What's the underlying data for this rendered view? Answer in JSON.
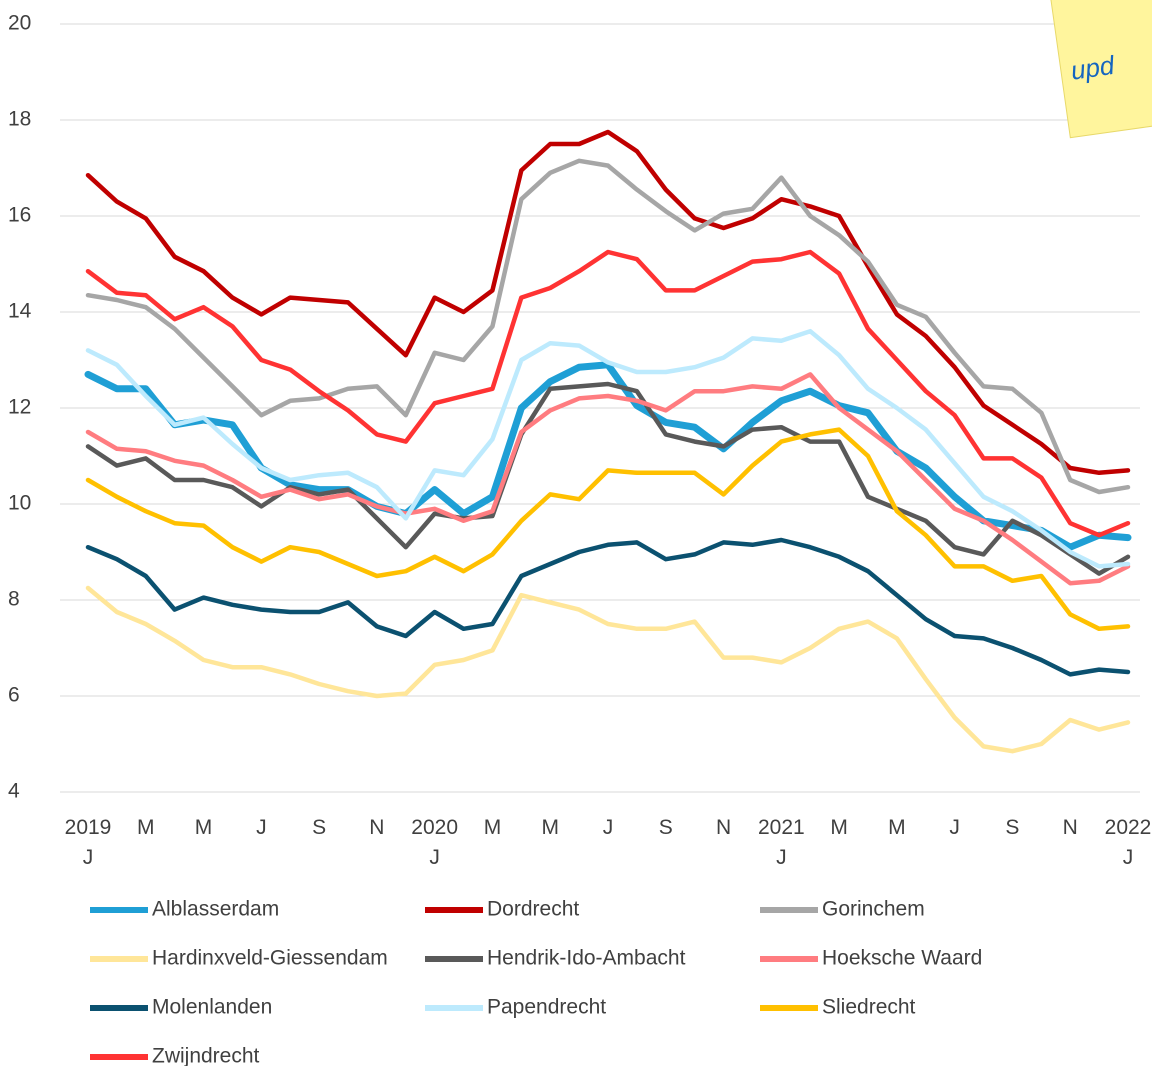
{
  "chart_data": {
    "type": "line",
    "note": "upd",
    "categories": [
      "2019\nJ",
      null,
      "M",
      null,
      "M",
      null,
      "J",
      null,
      "S",
      null,
      "N",
      null,
      "2020\nJ",
      null,
      "M",
      null,
      "M",
      null,
      "J",
      null,
      "S",
      null,
      "N",
      null,
      "2021\nJ",
      null,
      "M",
      null,
      "M",
      null,
      "J",
      null,
      "S",
      null,
      "N",
      null,
      "2022\nJ"
    ],
    "ylim": [
      4,
      20
    ],
    "yticks": [
      4,
      6,
      8,
      10,
      12,
      14,
      16,
      18,
      20
    ],
    "grid": true,
    "legend": "bottom",
    "series": [
      {
        "name": "Alblasserdam",
        "color": "#1f9fd5",
        "values": [
          12.7,
          12.4,
          12.4,
          11.65,
          11.75,
          11.65,
          10.75,
          10.4,
          10.3,
          10.3,
          9.95,
          9.8,
          10.3,
          9.8,
          10.15,
          12.0,
          12.55,
          12.85,
          12.9,
          12.05,
          11.7,
          11.6,
          11.15,
          11.7,
          12.15,
          12.35,
          12.05,
          11.9,
          11.1,
          10.75,
          10.15,
          9.65,
          9.55,
          9.45,
          9.1,
          9.35,
          9.3
        ]
      },
      {
        "name": "Dordrecht",
        "color": "#c00000",
        "values": [
          16.85,
          16.3,
          15.95,
          15.15,
          14.85,
          14.3,
          13.95,
          14.3,
          14.25,
          14.2,
          13.65,
          13.1,
          14.3,
          14.0,
          14.45,
          16.95,
          17.5,
          17.5,
          17.75,
          17.35,
          16.55,
          15.95,
          15.75,
          15.95,
          16.35,
          16.2,
          16.0,
          14.95,
          13.95,
          13.5,
          12.85,
          12.05,
          11.65,
          11.25,
          10.75,
          10.65,
          10.7
        ]
      },
      {
        "name": "Gorinchem",
        "color": "#a6a6a6",
        "values": [
          14.35,
          14.25,
          14.1,
          13.65,
          13.05,
          12.45,
          11.85,
          12.15,
          12.2,
          12.4,
          12.45,
          11.85,
          13.15,
          13.0,
          13.7,
          16.35,
          16.9,
          17.15,
          17.05,
          16.55,
          16.1,
          15.7,
          16.05,
          16.15,
          16.8,
          16.0,
          15.6,
          15.05,
          14.15,
          13.9,
          13.15,
          12.45,
          12.4,
          11.9,
          10.5,
          10.25,
          10.35
        ]
      },
      {
        "name": "Hardinxveld-Giessendam",
        "color": "#ffe699",
        "values": [
          8.25,
          7.75,
          7.5,
          7.15,
          6.75,
          6.6,
          6.6,
          6.45,
          6.25,
          6.1,
          6.0,
          6.05,
          6.65,
          6.75,
          6.95,
          8.1,
          7.95,
          7.8,
          7.5,
          7.4,
          7.4,
          7.55,
          6.8,
          6.8,
          6.7,
          7.0,
          7.4,
          7.55,
          7.2,
          6.35,
          5.55,
          4.95,
          4.85,
          5.0,
          5.5,
          5.3,
          5.45
        ]
      },
      {
        "name": "Hendrik-Ido-Ambacht",
        "color": "#595959",
        "values": [
          11.2,
          10.8,
          10.95,
          10.5,
          10.5,
          10.35,
          9.95,
          10.35,
          10.2,
          10.3,
          9.7,
          9.1,
          9.8,
          9.7,
          9.75,
          11.45,
          12.4,
          12.45,
          12.5,
          12.35,
          11.45,
          11.3,
          11.2,
          11.55,
          11.6,
          11.3,
          11.3,
          10.15,
          9.9,
          9.65,
          9.1,
          8.95,
          9.65,
          9.35,
          8.95,
          8.55,
          8.9
        ]
      },
      {
        "name": "Hoeksche Waard",
        "color": "#ff7c80",
        "values": [
          11.5,
          11.15,
          11.1,
          10.9,
          10.8,
          10.5,
          10.15,
          10.3,
          10.1,
          10.2,
          9.95,
          9.8,
          9.9,
          9.65,
          9.85,
          11.5,
          11.95,
          12.2,
          12.25,
          12.15,
          11.95,
          12.35,
          12.35,
          12.45,
          12.4,
          12.7,
          12.0,
          11.55,
          11.1,
          10.5,
          9.9,
          9.65,
          9.25,
          8.8,
          8.35,
          8.4,
          8.7
        ]
      },
      {
        "name": "Molenlanden",
        "color": "#0b5170",
        "values": [
          9.1,
          8.85,
          8.5,
          7.8,
          8.05,
          7.9,
          7.8,
          7.75,
          7.75,
          7.95,
          7.45,
          7.25,
          7.75,
          7.4,
          7.5,
          8.5,
          8.75,
          9.0,
          9.15,
          9.2,
          8.85,
          8.95,
          9.2,
          9.15,
          9.25,
          9.1,
          8.9,
          8.6,
          8.1,
          7.6,
          7.25,
          7.2,
          7.0,
          6.75,
          6.45,
          6.55,
          6.5
        ]
      },
      {
        "name": "Papendrecht",
        "color": "#bdeafd",
        "values": [
          13.2,
          12.9,
          12.25,
          11.65,
          11.8,
          11.25,
          10.75,
          10.5,
          10.6,
          10.65,
          10.35,
          9.7,
          10.7,
          10.6,
          11.35,
          13.0,
          13.35,
          13.3,
          12.95,
          12.75,
          12.75,
          12.85,
          13.05,
          13.45,
          13.4,
          13.6,
          13.1,
          12.4,
          12.0,
          11.55,
          10.85,
          10.15,
          9.85,
          9.45,
          9.0,
          8.7,
          8.75
        ]
      },
      {
        "name": "Sliedrecht",
        "color": "#ffc000",
        "values": [
          10.5,
          10.15,
          9.85,
          9.6,
          9.55,
          9.1,
          8.8,
          9.1,
          9.0,
          8.75,
          8.5,
          8.6,
          8.9,
          8.6,
          8.95,
          9.65,
          10.2,
          10.1,
          10.7,
          10.65,
          10.65,
          10.65,
          10.2,
          10.8,
          11.3,
          11.45,
          11.55,
          11.0,
          9.85,
          9.35,
          8.7,
          8.7,
          8.4,
          8.5,
          7.7,
          7.4,
          7.45
        ]
      },
      {
        "name": "Zwijndrecht",
        "color": "#ff3333",
        "values": [
          14.85,
          14.4,
          14.35,
          13.85,
          14.1,
          13.7,
          13.0,
          12.8,
          12.35,
          11.95,
          11.45,
          11.3,
          12.1,
          12.25,
          12.4,
          14.3,
          14.5,
          14.85,
          15.25,
          15.1,
          14.45,
          14.45,
          14.75,
          15.05,
          15.1,
          15.25,
          14.8,
          13.65,
          13.0,
          12.35,
          11.85,
          10.95,
          10.95,
          10.55,
          9.6,
          9.35,
          9.6
        ]
      }
    ]
  }
}
